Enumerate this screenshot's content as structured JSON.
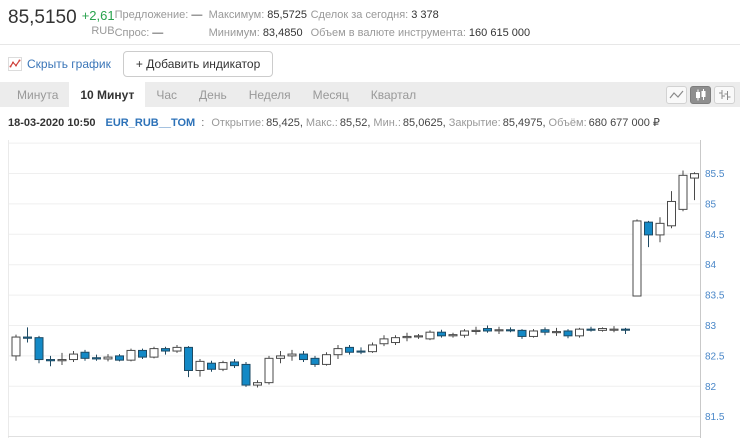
{
  "header": {
    "price": "85,5150",
    "change": "+2,61",
    "currency": "RUB",
    "stats": [
      {
        "label": "Предложение:",
        "value": "—"
      },
      {
        "label": "Спрос:",
        "value": "—"
      },
      {
        "label": "Максимум:",
        "value": "85,5725"
      },
      {
        "label": "Минимум:",
        "value": "83,4850"
      },
      {
        "label": "Сделок за сегодня:",
        "value": "3 378"
      },
      {
        "label": "Объем в валюте инструмента:",
        "value": "160 615 000"
      }
    ]
  },
  "toolbar": {
    "hide_chart_label": "Скрыть график",
    "add_indicator_label": "+ Добавить индикатор"
  },
  "tabs": {
    "items": [
      "Минута",
      "10 Минут",
      "Час",
      "День",
      "Неделя",
      "Месяц",
      "Квартал"
    ],
    "active": "10 Минут"
  },
  "chart_type_buttons": [
    {
      "name": "line-chart-icon",
      "active": false
    },
    {
      "name": "candlestick-chart-icon",
      "active": true
    },
    {
      "name": "ohlc-chart-icon",
      "active": false
    }
  ],
  "info_line": {
    "datetime": "18-03-2020 10:50",
    "ticker": "EUR_RUB__TOM",
    "separator": ":",
    "fields": [
      {
        "label": "Открытие:",
        "value": "85,425,"
      },
      {
        "label": "Макс.:",
        "value": "85,52,"
      },
      {
        "label": "Мин.:",
        "value": "85,0625,"
      },
      {
        "label": "Закрытие:",
        "value": "85,4975,"
      },
      {
        "label": "Объём:",
        "value": "680 677 000 ₽"
      }
    ]
  },
  "colors": {
    "accent_link": "#3b76b8",
    "change_green": "#28a24c",
    "ticker_blue": "#2d72b8"
  },
  "chart_data": {
    "type": "candlestick",
    "interval": "10 Минут",
    "y_axis_side": "right",
    "y_ticks": [
      "85.5",
      "85",
      "84.5",
      "84",
      "83.5",
      "83",
      "82.5",
      "82",
      "81.5"
    ],
    "gridline_prices": [
      86,
      85.5,
      85,
      84.5,
      84,
      83.5,
      83,
      82.5,
      82,
      81.5
    ],
    "visible_price_range": [
      81.15,
      86.0
    ],
    "grid": true,
    "colors": {
      "up_fill": "#ffffff",
      "up_stroke": "#4a4a4a",
      "down_fill": "#1389c6",
      "down_stroke": "#1e4a63",
      "grid": "#efefef",
      "axis": "#c9c9c9",
      "tick_label": "#4a87c8"
    },
    "candles_ohlc": [
      [
        82.5,
        82.85,
        82.42,
        82.81
      ],
      [
        82.81,
        82.97,
        82.72,
        82.79
      ],
      [
        82.8,
        82.83,
        82.38,
        82.44
      ],
      [
        82.44,
        82.5,
        82.33,
        82.42
      ],
      [
        82.42,
        82.55,
        82.35,
        82.44
      ],
      [
        82.44,
        82.58,
        82.4,
        82.53
      ],
      [
        82.56,
        82.6,
        82.42,
        82.46
      ],
      [
        82.47,
        82.52,
        82.42,
        82.45
      ],
      [
        82.45,
        82.53,
        82.41,
        82.48
      ],
      [
        82.5,
        82.53,
        82.41,
        82.43
      ],
      [
        82.43,
        82.62,
        82.41,
        82.59
      ],
      [
        82.59,
        82.62,
        82.45,
        82.48
      ],
      [
        82.48,
        82.65,
        82.46,
        82.62
      ],
      [
        82.62,
        82.65,
        82.52,
        82.58
      ],
      [
        82.58,
        82.68,
        82.55,
        82.64
      ],
      [
        82.64,
        82.66,
        82.15,
        82.26
      ],
      [
        82.26,
        82.45,
        82.16,
        82.41
      ],
      [
        82.38,
        82.42,
        82.24,
        82.28
      ],
      [
        82.28,
        82.42,
        82.25,
        82.39
      ],
      [
        82.4,
        82.45,
        82.3,
        82.34
      ],
      [
        82.36,
        82.4,
        81.99,
        82.02
      ],
      [
        82.02,
        82.1,
        81.98,
        82.06
      ],
      [
        82.06,
        82.5,
        82.03,
        82.46
      ],
      [
        82.46,
        82.58,
        82.38,
        82.5
      ],
      [
        82.5,
        82.6,
        82.42,
        82.53
      ],
      [
        82.53,
        82.58,
        82.4,
        82.44
      ],
      [
        82.46,
        82.5,
        82.32,
        82.36
      ],
      [
        82.36,
        82.56,
        82.34,
        82.52
      ],
      [
        82.52,
        82.68,
        82.45,
        82.62
      ],
      [
        82.64,
        82.68,
        82.52,
        82.56
      ],
      [
        82.58,
        82.64,
        82.53,
        82.57
      ],
      [
        82.57,
        82.72,
        82.55,
        82.68
      ],
      [
        82.7,
        82.84,
        82.66,
        82.78
      ],
      [
        82.72,
        82.84,
        82.68,
        82.8
      ],
      [
        82.8,
        82.88,
        82.74,
        82.82
      ],
      [
        82.82,
        82.86,
        82.78,
        82.83
      ],
      [
        82.78,
        82.92,
        82.76,
        82.89
      ],
      [
        82.89,
        82.93,
        82.8,
        82.83
      ],
      [
        82.83,
        82.88,
        82.8,
        82.85
      ],
      [
        82.84,
        82.94,
        82.8,
        82.91
      ],
      [
        82.91,
        82.98,
        82.85,
        82.92
      ],
      [
        82.95,
        83.0,
        82.88,
        82.91
      ],
      [
        82.92,
        82.98,
        82.86,
        82.93
      ],
      [
        82.93,
        82.97,
        82.89,
        82.92
      ],
      [
        82.92,
        82.94,
        82.78,
        82.82
      ],
      [
        82.82,
        82.94,
        82.8,
        82.91
      ],
      [
        82.93,
        82.97,
        82.84,
        82.89
      ],
      [
        82.89,
        82.96,
        82.83,
        82.9
      ],
      [
        82.91,
        82.94,
        82.79,
        82.83
      ],
      [
        82.83,
        82.96,
        82.8,
        82.94
      ],
      [
        82.94,
        82.98,
        82.9,
        82.93
      ],
      [
        82.92,
        82.97,
        82.9,
        82.95
      ],
      [
        82.94,
        82.99,
        82.89,
        82.94
      ],
      [
        82.94,
        82.96,
        82.86,
        82.93
      ],
      [
        83.485,
        84.745,
        83.485,
        84.72
      ],
      [
        84.7,
        84.72,
        84.29,
        84.49
      ],
      [
        84.49,
        84.78,
        84.37,
        84.68
      ],
      [
        84.64,
        85.21,
        84.6,
        85.04
      ],
      [
        84.91,
        85.55,
        84.88,
        85.47
      ],
      [
        85.425,
        85.52,
        85.0625,
        85.4975
      ]
    ]
  }
}
